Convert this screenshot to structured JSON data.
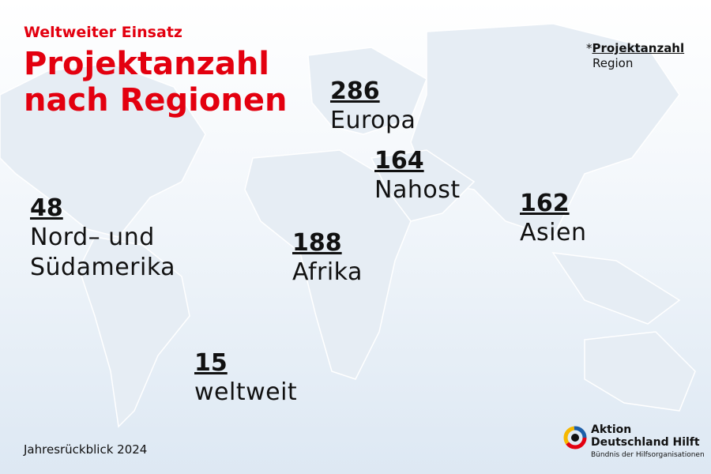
{
  "header": {
    "kicker": "Weltweiter Einsatz",
    "title_line1": "Projektanzahl",
    "title_line2": "nach Regionen"
  },
  "legend": {
    "marker": "*",
    "count_label": "Projektanzahl",
    "region_label": "Region"
  },
  "regions": [
    {
      "count": 286,
      "name": "Europa"
    },
    {
      "count": 164,
      "name": "Nahost"
    },
    {
      "count": 162,
      "name": "Asien"
    },
    {
      "count": 48,
      "name": "Nord– und Südamerika"
    },
    {
      "count": 188,
      "name": "Afrika"
    },
    {
      "count": 15,
      "name": "weltweit"
    }
  ],
  "footer": {
    "note": "Jahresrückblick 2024"
  },
  "logo": {
    "line1": "Aktion",
    "line2": "Deutschland Hilft",
    "tagline": "Bündnis der Hilfsorganisationen"
  }
}
